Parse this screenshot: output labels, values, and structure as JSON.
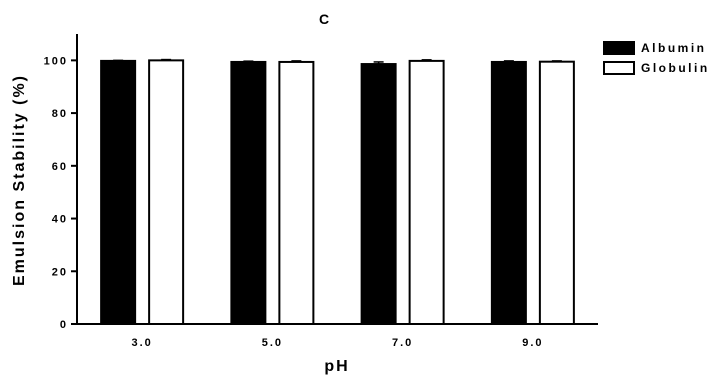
{
  "chart_data": {
    "type": "bar",
    "title": "C",
    "xlabel": "pH",
    "ylabel": "Emulsion Stability (%)",
    "categories": [
      "3.0",
      "5.0",
      "7.0",
      "9.0"
    ],
    "ylim": [
      0,
      110
    ],
    "yticks": [
      "0",
      "20",
      "40",
      "60",
      "80",
      "100"
    ],
    "legend_position": "top-right",
    "series": [
      {
        "name": "Albumin",
        "color": "#000000",
        "fill": "solid",
        "values": [
          99.8,
          99.4,
          98.6,
          99.4
        ],
        "errors": [
          0.2,
          0.3,
          0.8,
          0.4
        ]
      },
      {
        "name": "Globulin",
        "color": "#ffffff",
        "fill": "outline",
        "values": [
          100.0,
          99.4,
          99.8,
          99.5
        ],
        "errors": [
          0.3,
          0.4,
          0.4,
          0.3
        ]
      }
    ]
  }
}
